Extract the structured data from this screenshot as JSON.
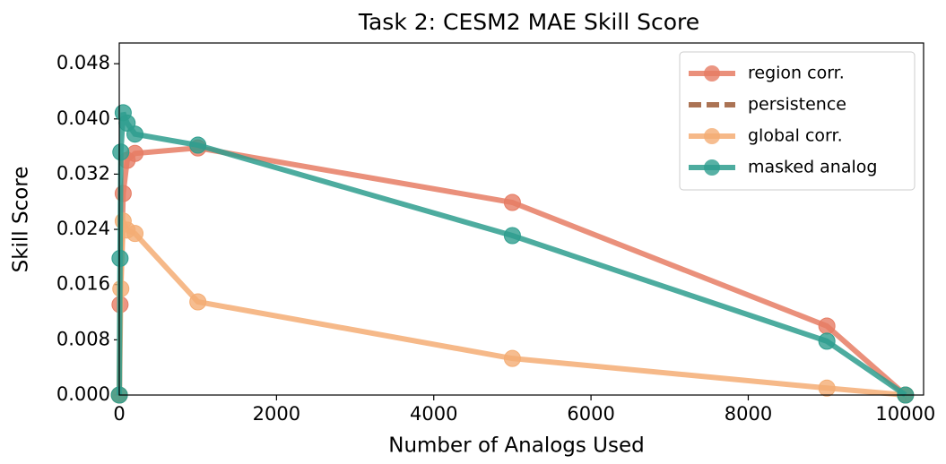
{
  "chart_data": {
    "type": "line",
    "title": "Task 2: CESM2 MAE Skill Score",
    "xlabel": "Number of Analogs Used",
    "ylabel": "Skill Score",
    "xlim": [
      0,
      10230
    ],
    "ylim": [
      0,
      0.051
    ],
    "xticks": [
      0,
      2000,
      4000,
      6000,
      8000,
      10000
    ],
    "yticks": [
      {
        "value": 0,
        "label": "0.000"
      },
      {
        "value": 0.008,
        "label": "0.008"
      },
      {
        "value": 0.016,
        "label": "0.016"
      },
      {
        "value": 0.024,
        "label": "0.024"
      },
      {
        "value": 0.032,
        "label": "0.032"
      },
      {
        "value": 0.04,
        "label": "0.040"
      },
      {
        "value": 0.048,
        "label": "0.048"
      }
    ],
    "legend": "upper right",
    "series": [
      {
        "name": "region corr.",
        "color": "#e67c64",
        "marker": true,
        "dashed": false,
        "x": [
          1,
          10,
          50,
          100,
          200,
          1000,
          5000,
          9000,
          10000
        ],
        "values": [
          0,
          0.0131,
          0.0292,
          0.034,
          0.035,
          0.0358,
          0.0279,
          0.01,
          0
        ]
      },
      {
        "name": "persistence",
        "color": "#9c5b36",
        "marker": false,
        "dashed": true,
        "x": [
          1,
          10
        ],
        "values": [
          0,
          0
        ]
      },
      {
        "name": "global corr.",
        "color": "#f4ad74",
        "marker": true,
        "dashed": false,
        "x": [
          1,
          20,
          50,
          100,
          200,
          1000,
          5000,
          9000,
          10000
        ],
        "values": [
          0,
          0.0154,
          0.0252,
          0.0239,
          0.0234,
          0.0135,
          0.0053,
          0.001,
          0
        ]
      },
      {
        "name": "masked analog",
        "color": "#2e9e8e",
        "marker": true,
        "dashed": false,
        "x": [
          1,
          10,
          20,
          50,
          100,
          200,
          1000,
          5000,
          9000,
          10000
        ],
        "values": [
          0,
          0.0198,
          0.0352,
          0.0409,
          0.0394,
          0.0378,
          0.0362,
          0.0231,
          0.0078,
          0
        ]
      }
    ]
  }
}
